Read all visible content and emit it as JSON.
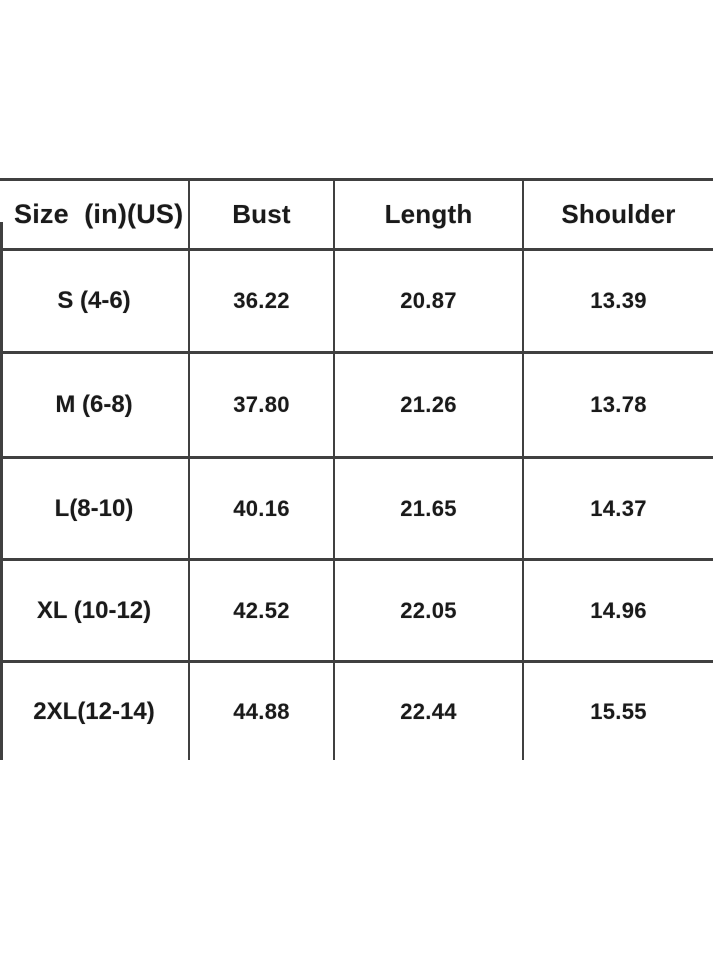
{
  "colors": {
    "line": "#404040",
    "text": "#1a1a1a",
    "background": "#ffffff"
  },
  "chart_data": {
    "type": "table",
    "columns": [
      "Size  (in)(US)",
      "Bust",
      "Length",
      "Shoulder"
    ],
    "rows": [
      [
        "S (4-6)",
        "36.22",
        "20.87",
        "13.39"
      ],
      [
        "M (6-8)",
        "37.80",
        "21.26",
        "13.78"
      ],
      [
        "L(8-10)",
        "40.16",
        "21.65",
        "14.37"
      ],
      [
        "XL (10-12)",
        "42.52",
        "22.05",
        "14.96"
      ],
      [
        "2XL(12-14)",
        "44.88",
        "22.44",
        "15.55"
      ]
    ]
  }
}
